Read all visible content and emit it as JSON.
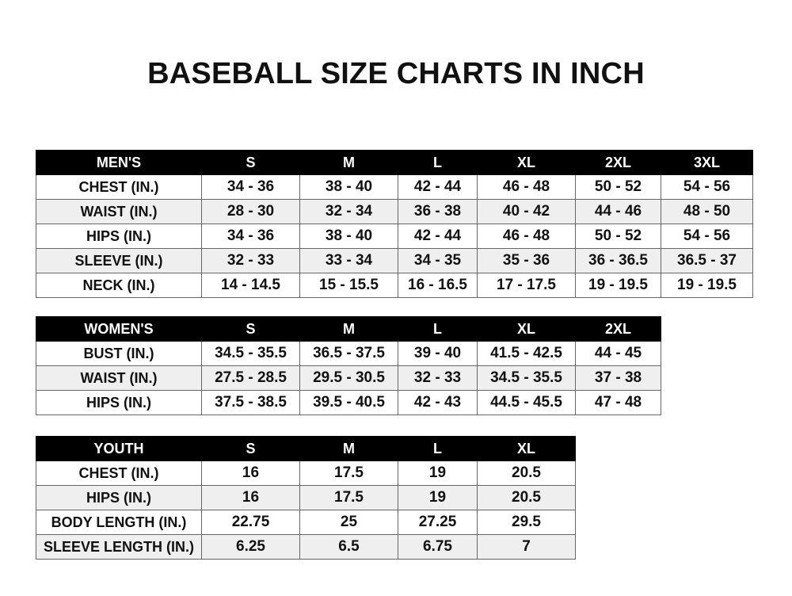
{
  "title": "BASEBALL SIZE CHARTS IN INCH",
  "colors": {
    "header_bg": "#000000",
    "header_text": "#ffffff",
    "alt_row": "#efefef",
    "border": "#666666"
  },
  "tables": [
    {
      "id": "men",
      "header": [
        "MEN'S",
        "S",
        "M",
        "L",
        "XL",
        "2XL",
        "3XL"
      ],
      "rows": [
        [
          "CHEST (IN.)",
          "34 - 36",
          "38 - 40",
          "42 - 44",
          "46 - 48",
          "50 - 52",
          "54 - 56"
        ],
        [
          "WAIST (IN.)",
          "28 - 30",
          "32 - 34",
          "36 - 38",
          "40 - 42",
          "44 - 46",
          "48 - 50"
        ],
        [
          "HIPS (IN.)",
          "34 - 36",
          "38 - 40",
          "42 - 44",
          "46 - 48",
          "50 - 52",
          "54 - 56"
        ],
        [
          "SLEEVE (IN.)",
          "32 - 33",
          "33 - 34",
          "34 - 35",
          "35 - 36",
          "36 - 36.5",
          "36.5 - 37"
        ],
        [
          "NECK (IN.)",
          "14 - 14.5",
          "15 - 15.5",
          "16 - 16.5",
          "17 - 17.5",
          "19 - 19.5",
          "19 - 19.5"
        ]
      ]
    },
    {
      "id": "women",
      "header": [
        "WOMEN'S",
        "S",
        "M",
        "L",
        "XL",
        "2XL"
      ],
      "rows": [
        [
          "BUST (IN.)",
          "34.5 - 35.5",
          "36.5 - 37.5",
          "39 - 40",
          "41.5 - 42.5",
          "44 - 45"
        ],
        [
          "WAIST (IN.)",
          "27.5 - 28.5",
          "29.5 - 30.5",
          "32 - 33",
          "34.5 - 35.5",
          "37 - 38"
        ],
        [
          "HIPS (IN.)",
          "37.5 - 38.5",
          "39.5 - 40.5",
          "42 - 43",
          "44.5 - 45.5",
          "47 - 48"
        ]
      ]
    },
    {
      "id": "youth",
      "header": [
        "YOUTH",
        "S",
        "M",
        "L",
        "XL"
      ],
      "rows": [
        [
          "CHEST (IN.)",
          "16",
          "17.5",
          "19",
          "20.5"
        ],
        [
          "HIPS (IN.)",
          "16",
          "17.5",
          "19",
          "20.5"
        ],
        [
          "BODY LENGTH (IN.)",
          "22.75",
          "25",
          "27.25",
          "29.5"
        ],
        [
          "SLEEVE LENGTH (IN.)",
          "6.25",
          "6.5",
          "6.75",
          "7"
        ]
      ]
    }
  ]
}
